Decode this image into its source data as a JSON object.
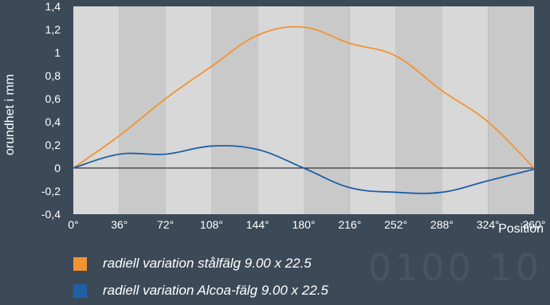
{
  "chart_data": {
    "type": "line",
    "title": "",
    "xlabel": "Position",
    "ylabel": "orundhet i mm",
    "x": [
      0,
      36,
      72,
      108,
      144,
      180,
      216,
      252,
      288,
      324,
      360
    ],
    "x_tick_labels": [
      "0°",
      "36°",
      "72°",
      "108°",
      "144°",
      "180°",
      "216°",
      "252°",
      "288°",
      "324°",
      "360°"
    ],
    "xlim": [
      0,
      360
    ],
    "ylim": [
      -0.4,
      1.4
    ],
    "y_ticks": [
      -0.4,
      -0.2,
      0,
      0.2,
      0.4,
      0.6,
      0.8,
      1,
      1.2,
      1.4
    ],
    "y_tick_labels": [
      "-0,4",
      "-0,2",
      "0",
      "0,2",
      "0,4",
      "0,6",
      "0,8",
      "1",
      "1,2",
      "1,4"
    ],
    "grid": "alternating vertical bands",
    "legend_position": "bottom-left",
    "series": [
      {
        "name": "radiell variation stålfälg 9.00 x 22.5",
        "color": "#f39332",
        "values": [
          0,
          0.28,
          0.6,
          0.88,
          1.15,
          1.22,
          1.08,
          0.97,
          0.67,
          0.4,
          0
        ]
      },
      {
        "name": "radiell variation Alcoa-fälg 9.00 x 22.5",
        "color": "#1f5fa6",
        "values": [
          0,
          0.12,
          0.12,
          0.19,
          0.16,
          0.0,
          -0.17,
          -0.21,
          -0.21,
          -0.11,
          -0.01
        ]
      }
    ]
  },
  "watermark": "0100 10"
}
